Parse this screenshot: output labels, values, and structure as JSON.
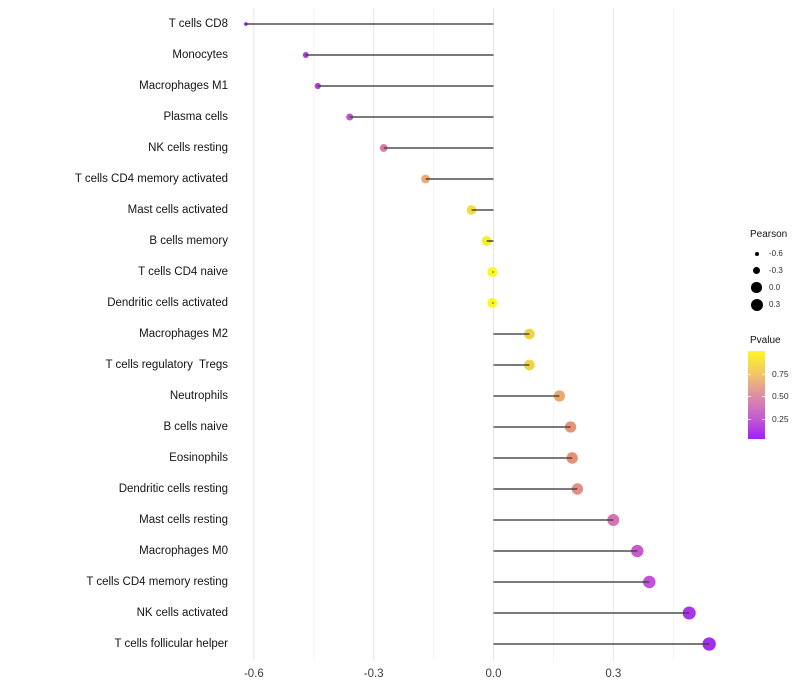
{
  "chart_data": {
    "type": "lollipop",
    "title": "",
    "xlabel": "",
    "ylabel": "",
    "grid": "vertical-only",
    "legend_position": "right",
    "x_ticks": [
      {
        "label": "-0.6",
        "value": -0.6
      },
      {
        "label": "-0.3",
        "value": -0.3
      },
      {
        "label": "0.0",
        "value": 0.0
      },
      {
        "label": "0.3",
        "value": 0.3
      }
    ],
    "x_minor": [
      -0.45,
      -0.15,
      0.15,
      0.45
    ],
    "xlim": [
      -0.655,
      0.565
    ],
    "points": [
      {
        "label": "T cells CD8",
        "pearson": -0.62,
        "color": "#9320DC"
      },
      {
        "label": "Monocytes",
        "pearson": -0.47,
        "color": "#A93BD6"
      },
      {
        "label": "Macrophages M1",
        "pearson": -0.44,
        "color": "#AC42D3"
      },
      {
        "label": "Plasma cells",
        "pearson": -0.36,
        "color": "#BE57C5"
      },
      {
        "label": "NK cells resting",
        "pearson": -0.275,
        "color": "#D97CAC"
      },
      {
        "label": "T cells CD4 memory activated",
        "pearson": -0.17,
        "color": "#ECAC7A"
      },
      {
        "label": "Mast cells activated",
        "pearson": -0.055,
        "color": "#F2DE3E"
      },
      {
        "label": "B cells memory",
        "pearson": -0.017,
        "color": "#F7EE2D"
      },
      {
        "label": "T cells CD4 naive",
        "pearson": -0.003,
        "color": "#FAF823"
      },
      {
        "label": "Dendritic cells activated",
        "pearson": -0.003,
        "color": "#FAF823"
      },
      {
        "label": "Macrophages M2",
        "pearson": 0.09,
        "color": "#F0D341"
      },
      {
        "label": "T cells regulatory  Tregs",
        "pearson": 0.09,
        "color": "#F0D441"
      },
      {
        "label": "Neutrophils",
        "pearson": 0.165,
        "color": "#EBAA6C"
      },
      {
        "label": "B cells naive",
        "pearson": 0.193,
        "color": "#E79277"
      },
      {
        "label": "Eosinophils",
        "pearson": 0.197,
        "color": "#E69176"
      },
      {
        "label": "Dendritic cells resting",
        "pearson": 0.21,
        "color": "#E28E86"
      },
      {
        "label": "Mast cells resting",
        "pearson": 0.3,
        "color": "#D573B3"
      },
      {
        "label": "Macrophages M0",
        "pearson": 0.36,
        "color": "#C75BCB"
      },
      {
        "label": "T cells CD4 memory resting",
        "pearson": 0.39,
        "color": "#C351D9"
      },
      {
        "label": "NK cells activated",
        "pearson": 0.49,
        "color": "#AA33EC"
      },
      {
        "label": "T cells follicular helper",
        "pearson": 0.54,
        "color": "#A42DEE"
      }
    ],
    "legend_size": {
      "title": "Pearson",
      "entries": [
        {
          "label": "-0.6",
          "value": -0.6
        },
        {
          "label": "-0.3",
          "value": -0.3
        },
        {
          "label": "0.0",
          "value": 0.0
        },
        {
          "label": "0.3",
          "value": 0.3
        }
      ]
    },
    "legend_color": {
      "title": "Pvalue",
      "gradient_top_to_bottom": [
        "#FBF723",
        "#F3C863",
        "#DE8FA3",
        "#C45FD1",
        "#A21FF5"
      ],
      "ticks": [
        {
          "label": "0.75",
          "value": 0.75
        },
        {
          "label": "0.50",
          "value": 0.5
        },
        {
          "label": "0.25",
          "value": 0.25
        }
      ],
      "range": [
        0.03,
        1.0
      ]
    },
    "style_colors": {
      "stem": "#404040",
      "grid_major": "#E6E6E6",
      "grid_minor": "#F4F4F4",
      "x_tick_text": "#3D3D3D",
      "y_label_text": "#141414",
      "legend_text": "#303030",
      "background": "#FFFFFF"
    }
  }
}
